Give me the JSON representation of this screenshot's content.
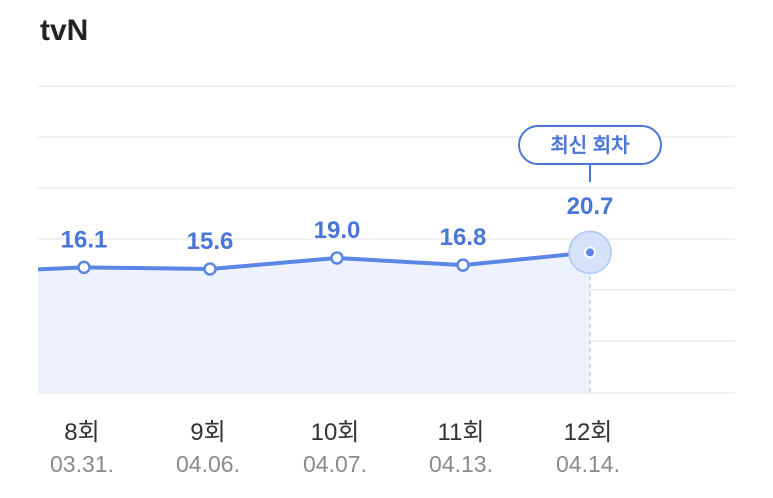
{
  "channel": "tvN",
  "latest_badge": "최신 회차",
  "colors": {
    "line": "#5b86e5",
    "label": "#4a76d8",
    "area": "#eef2fc",
    "grid": "#ececec"
  },
  "chart_data": {
    "type": "line",
    "title": "tvN",
    "categories": [
      "8회",
      "9회",
      "10회",
      "11회",
      "12회"
    ],
    "dates": [
      "03.31.",
      "04.06.",
      "04.07.",
      "04.13.",
      "04.14."
    ],
    "series": [
      {
        "values": [
          16.1,
          15.6,
          19.0,
          16.8,
          20.7
        ]
      }
    ],
    "value_labels": [
      "16.1",
      "15.6",
      "19.0",
      "16.8",
      "20.7"
    ],
    "latest_index": 4,
    "grid": true
  }
}
